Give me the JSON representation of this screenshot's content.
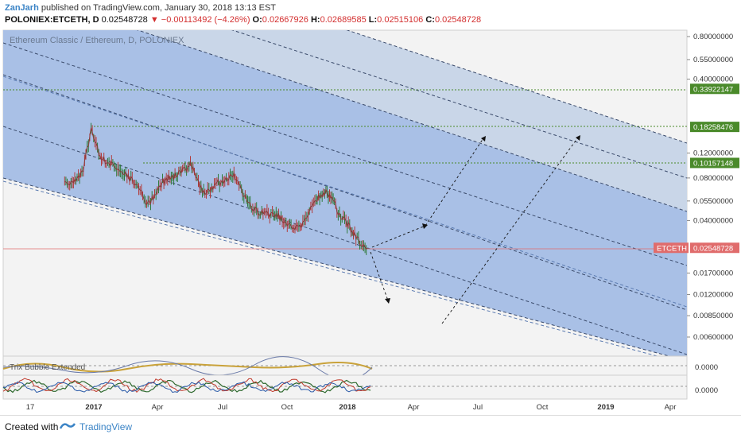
{
  "header": {
    "author": "ZanJarh",
    "published_text": "published on TradingView.com, January 30, 2018 13:13 EST",
    "symbol": "POLONIEX:ETCETH, D",
    "last": "0.02548728",
    "change": "−0.00113492 (−4.26%)",
    "open_label": "O:",
    "open": "0.02667926",
    "high_label": "H:",
    "high": "0.02689585",
    "low_label": "L:",
    "low": "0.02515106",
    "close_label": "C:",
    "close": "0.02548728"
  },
  "chart": {
    "instrument_label": "Ethereum Classic / Ethereum, D, POLONIEX",
    "indicator_label": "Trix Bubble Extended",
    "indicator_value_1": "0.0000",
    "indicator_value_2": "0.0000",
    "ticker_tag": "ETCETH",
    "colors": {
      "channel_fill": "#a9c0e6",
      "channel_upper_fill": "#c9d6e8",
      "price_line": "#8a3a3a",
      "level_green": "#4a8a2a",
      "current_price": "#e06c6c",
      "dashed": "#3a4a6a"
    }
  },
  "chart_data": {
    "type": "line",
    "title": "Ethereum Classic / Ethereum, D, POLONIEX",
    "y_scale": "log",
    "y_ticks": [
      "0.80000000",
      "0.55000000",
      "0.40000000",
      "0.33922147",
      "0.18258476",
      "0.12000000",
      "0.10157148",
      "0.08000000",
      "0.05500000",
      "0.04000000",
      "0.02548728",
      "0.01700000",
      "0.01200000",
      "0.00850000",
      "0.00600000"
    ],
    "x_ticks": [
      "17",
      "2017",
      "Apr",
      "Jul",
      "Oct",
      "2018",
      "Apr",
      "Jul",
      "Oct",
      "2019",
      "Apr"
    ],
    "horizontal_levels": [
      {
        "label": "0.33922147",
        "value": 0.33922147
      },
      {
        "label": "0.18258476",
        "value": 0.18258476
      },
      {
        "label": "0.10157148",
        "value": 0.10157148
      }
    ],
    "current_price": {
      "label": "ETCETH",
      "value": 0.02548728
    },
    "price_series": [
      [
        "2016-11-20",
        0.075
      ],
      [
        "2016-12-01",
        0.072
      ],
      [
        "2016-12-15",
        0.085
      ],
      [
        "2016-12-28",
        0.175
      ],
      [
        "2017-01-10",
        0.11
      ],
      [
        "2017-02-01",
        0.095
      ],
      [
        "2017-03-01",
        0.075
      ],
      [
        "2017-03-20",
        0.052
      ],
      [
        "2017-04-10",
        0.075
      ],
      [
        "2017-05-05",
        0.085
      ],
      [
        "2017-05-20",
        0.1
      ],
      [
        "2017-06-10",
        0.06
      ],
      [
        "2017-07-01",
        0.075
      ],
      [
        "2017-07-20",
        0.085
      ],
      [
        "2017-08-05",
        0.06
      ],
      [
        "2017-08-25",
        0.045
      ],
      [
        "2017-09-15",
        0.045
      ],
      [
        "2017-10-10",
        0.038
      ],
      [
        "2017-10-25",
        0.035
      ],
      [
        "2017-11-15",
        0.055
      ],
      [
        "2017-12-01",
        0.065
      ],
      [
        "2017-12-15",
        0.05
      ],
      [
        "2017-12-28",
        0.04
      ],
      [
        "2018-01-15",
        0.03
      ],
      [
        "2018-01-30",
        0.02548728
      ]
    ]
  }
}
